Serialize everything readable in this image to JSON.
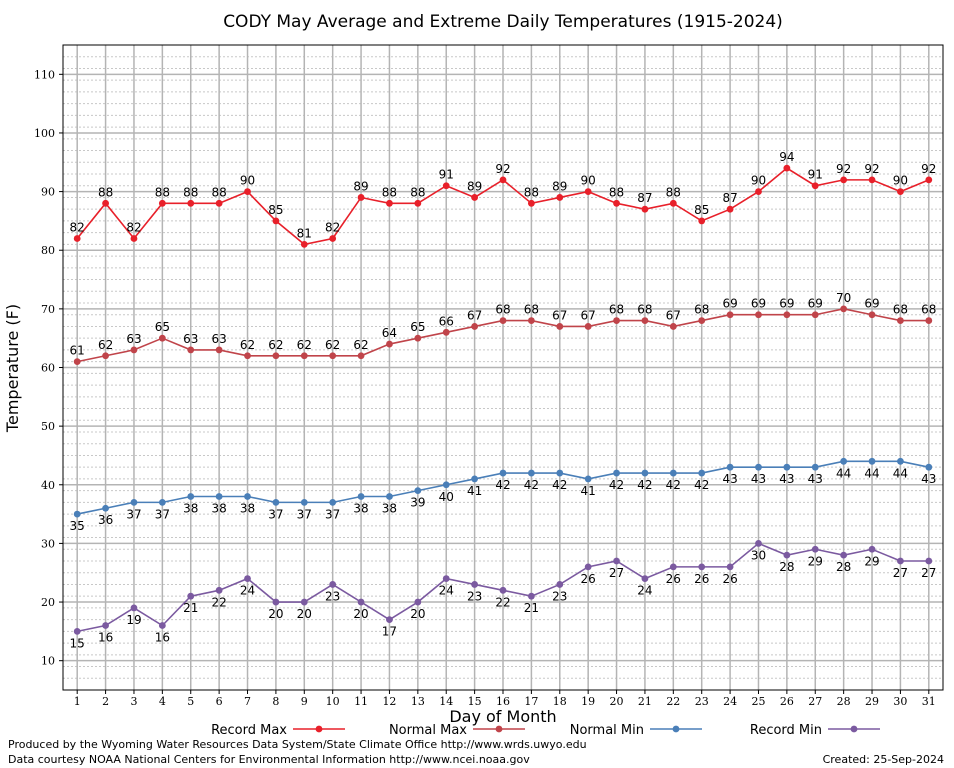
{
  "chart_data": {
    "type": "line",
    "title": "CODY May Average and Extreme Daily Temperatures (1915-2024)",
    "xlabel": "Day of Month",
    "ylabel": "Temperature (F)",
    "xlim": [
      0.5,
      31.5
    ],
    "ylim": [
      5,
      115
    ],
    "yticks": [
      10,
      20,
      30,
      40,
      50,
      60,
      70,
      80,
      90,
      100,
      110
    ],
    "x": [
      1,
      2,
      3,
      4,
      5,
      6,
      7,
      8,
      9,
      10,
      11,
      12,
      13,
      14,
      15,
      16,
      17,
      18,
      19,
      20,
      21,
      22,
      23,
      24,
      25,
      26,
      27,
      28,
      29,
      30,
      31
    ],
    "grid": true,
    "legend_position": "bottom",
    "series": [
      {
        "name": "Record Max",
        "color": "#e8202a",
        "label_pos": "above",
        "values": [
          82,
          88,
          82,
          88,
          88,
          88,
          90,
          85,
          81,
          82,
          89,
          88,
          88,
          91,
          89,
          92,
          88,
          89,
          90,
          88,
          87,
          88,
          85,
          87,
          90,
          94,
          91,
          92,
          92,
          90,
          92
        ]
      },
      {
        "name": "Normal Max",
        "color": "#c0444a",
        "label_pos": "above",
        "values": [
          61,
          62,
          63,
          65,
          63,
          63,
          62,
          62,
          62,
          62,
          62,
          64,
          65,
          66,
          67,
          68,
          68,
          67,
          67,
          68,
          68,
          67,
          68,
          69,
          69,
          69,
          69,
          70,
          69,
          68,
          68
        ]
      },
      {
        "name": "Normal Min",
        "color": "#4a7fb8",
        "label_pos": "below",
        "values": [
          35,
          36,
          37,
          37,
          38,
          38,
          38,
          37,
          37,
          37,
          38,
          38,
          39,
          40,
          41,
          42,
          42,
          42,
          41,
          42,
          42,
          42,
          42,
          43,
          43,
          43,
          43,
          44,
          44,
          44,
          43
        ]
      },
      {
        "name": "Record Min",
        "color": "#7b5aa0",
        "label_pos": "below",
        "values": [
          15,
          16,
          19,
          16,
          21,
          22,
          24,
          20,
          20,
          23,
          20,
          17,
          20,
          24,
          23,
          22,
          21,
          23,
          26,
          27,
          24,
          26,
          26,
          26,
          30,
          28,
          29,
          28,
          29,
          27,
          27
        ]
      }
    ]
  },
  "footer": {
    "left_line1": "Produced by the Wyoming Water Resources Data System/State Climate Office http://www.wrds.uwyo.edu",
    "left_line2": "Data courtesy NOAA National Centers for Environmental Information http://www.ncei.noaa.gov",
    "created": "Created:  25-Sep-2024"
  }
}
